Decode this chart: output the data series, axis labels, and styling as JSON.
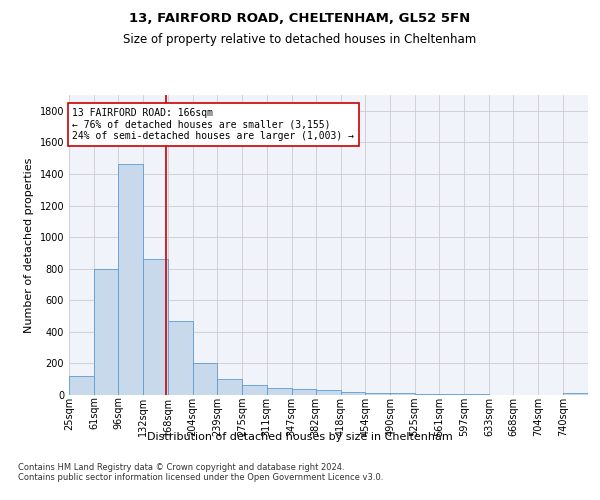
{
  "title1": "13, FAIRFORD ROAD, CHELTENHAM, GL52 5FN",
  "title2": "Size of property relative to detached houses in Cheltenham",
  "xlabel": "Distribution of detached houses by size in Cheltenham",
  "ylabel": "Number of detached properties",
  "bin_labels": [
    "25sqm",
    "61sqm",
    "96sqm",
    "132sqm",
    "168sqm",
    "204sqm",
    "239sqm",
    "275sqm",
    "311sqm",
    "347sqm",
    "382sqm",
    "418sqm",
    "454sqm",
    "490sqm",
    "525sqm",
    "561sqm",
    "597sqm",
    "633sqm",
    "668sqm",
    "704sqm",
    "740sqm"
  ],
  "bin_edges": [
    25,
    61,
    96,
    132,
    168,
    204,
    239,
    275,
    311,
    347,
    382,
    418,
    454,
    490,
    525,
    561,
    597,
    633,
    668,
    704,
    740
  ],
  "bar_heights": [
    120,
    800,
    1460,
    860,
    470,
    200,
    100,
    65,
    45,
    35,
    30,
    20,
    12,
    10,
    8,
    5,
    4,
    3,
    2,
    1,
    10
  ],
  "bar_color": "#c9d9ec",
  "bar_edge_color": "#5b9bd5",
  "vline_x": 166,
  "vline_color": "#cc0000",
  "annotation_text": "13 FAIRFORD ROAD: 166sqm\n← 76% of detached houses are smaller (3,155)\n24% of semi-detached houses are larger (1,003) →",
  "annotation_box_color": "#ffffff",
  "annotation_box_edge": "#cc0000",
  "ylim": [
    0,
    1900
  ],
  "yticks": [
    0,
    200,
    400,
    600,
    800,
    1000,
    1200,
    1400,
    1600,
    1800
  ],
  "grid_color": "#cccccc",
  "bg_color": "#f0f4fa",
  "footnote": "Contains HM Land Registry data © Crown copyright and database right 2024.\nContains public sector information licensed under the Open Government Licence v3.0.",
  "title1_fontsize": 9.5,
  "title2_fontsize": 8.5,
  "xlabel_fontsize": 8,
  "ylabel_fontsize": 8,
  "tick_fontsize": 7,
  "annot_fontsize": 7
}
